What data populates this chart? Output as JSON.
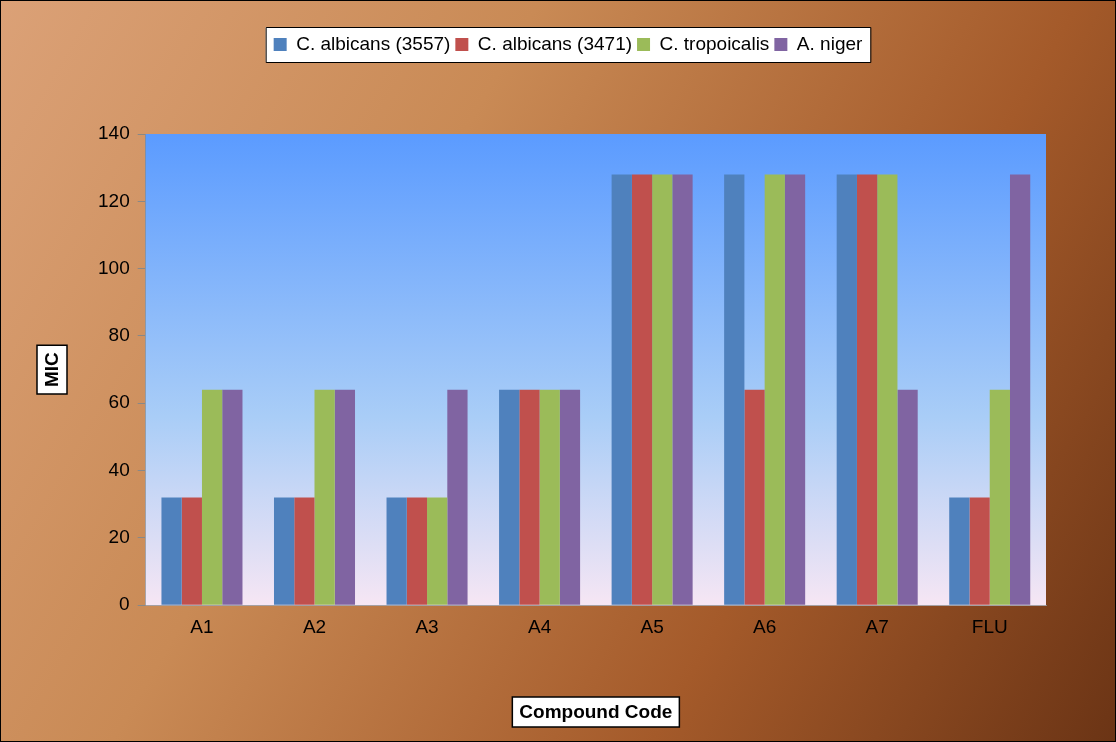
{
  "chart_data": {
    "type": "bar",
    "xlabel": "Compound Code",
    "ylabel": "MIC",
    "categories": [
      "A1",
      "A2",
      "A3",
      "A4",
      "A5",
      "A6",
      "A7",
      "FLU"
    ],
    "series": [
      {
        "name": "C. albicans (3557)",
        "color": "#4f81bd",
        "values": [
          32,
          32,
          32,
          64,
          128,
          128,
          128,
          32
        ]
      },
      {
        "name": "C. albicans (3471)",
        "color": "#c0504d",
        "values": [
          32,
          32,
          32,
          64,
          128,
          64,
          128,
          32
        ]
      },
      {
        "name": "C. tropoicalis",
        "color": "#9bbb59",
        "values": [
          64,
          64,
          32,
          64,
          128,
          128,
          128,
          64
        ]
      },
      {
        "name": "A. niger",
        "color": "#8064a2",
        "values": [
          64,
          64,
          64,
          64,
          128,
          128,
          64,
          128
        ]
      }
    ],
    "ylim": [
      0,
      140
    ],
    "yticks": [
      0,
      20,
      40,
      60,
      80,
      100,
      120,
      140
    ],
    "grid": false,
    "legend": "top"
  }
}
